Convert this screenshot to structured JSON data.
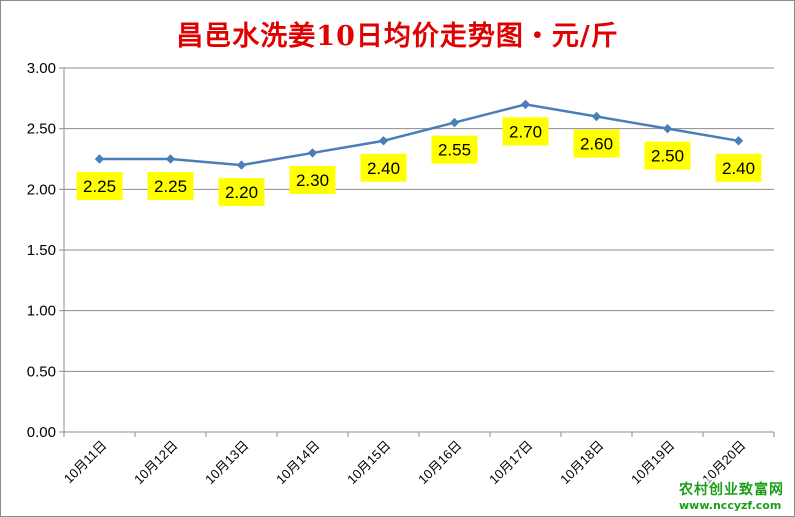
{
  "chart_data": {
    "type": "line",
    "title": "昌邑水洗姜10日均价走势图・元/斤",
    "categories": [
      "10月11日",
      "10月12日",
      "10月13日",
      "10月14日",
      "10月15日",
      "10月16日",
      "10月17日",
      "10月18日",
      "10月19日",
      "10月20日"
    ],
    "values": [
      2.25,
      2.25,
      2.2,
      2.3,
      2.4,
      2.55,
      2.7,
      2.6,
      2.5,
      2.4
    ],
    "data_labels": [
      "2.25",
      "2.25",
      "2.20",
      "2.30",
      "2.40",
      "2.55",
      "2.70",
      "2.60",
      "2.50",
      "2.40"
    ],
    "y_ticks": [
      "0.00",
      "0.50",
      "1.00",
      "1.50",
      "2.00",
      "2.50",
      "3.00"
    ],
    "ylim": [
      0,
      3
    ],
    "grid": true,
    "legend": "none",
    "colors": {
      "line": "#4a7ebb",
      "marker": "#4a7ebb",
      "label_bg": "#ffff00",
      "title": "#e00000",
      "grid": "#8c8c8c"
    }
  },
  "watermark": {
    "name": "农村创业致富网",
    "url": "www.nccyzf.com"
  }
}
